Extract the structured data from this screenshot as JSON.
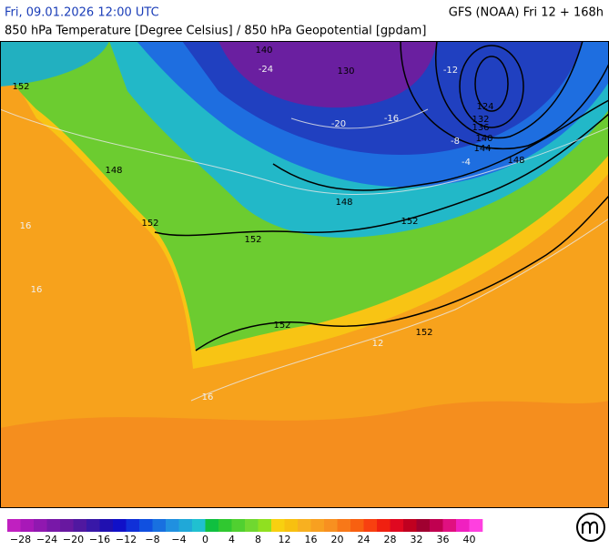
{
  "header": {
    "datetime": "Fri, 09.01.2026 12:00 UTC",
    "model": "GFS (NOAA) Fri 12 + 168h",
    "title": "850 hPa Temperature [Degree Celsius] / 850 hPa Geopotential [gpdam]"
  },
  "geopotential_labels": [
    124,
    132,
    136,
    140,
    144,
    148,
    148,
    152,
    152,
    152,
    152,
    152,
    148,
    140,
    130,
    152
  ],
  "temperature_labels": [
    -20,
    -16,
    -12,
    -8,
    -4,
    12,
    16,
    16,
    16,
    -24
  ],
  "colorbar": {
    "range": [
      -30,
      42
    ],
    "colors": [
      "#c020c0",
      "#a818b8",
      "#9018b0",
      "#7818a8",
      "#6818a0",
      "#5018a0",
      "#3818a8",
      "#2010b0",
      "#1010c8",
      "#1030d8",
      "#1050e0",
      "#1870e0",
      "#2090e0",
      "#20a8d8",
      "#20c0d0",
      "#10c040",
      "#30c830",
      "#50d030",
      "#70d830",
      "#90e020",
      "#f8d010",
      "#f8c010",
      "#f8b020",
      "#f8a020",
      "#f89020",
      "#f87818",
      "#f86010",
      "#f84010",
      "#f02010",
      "#e00820",
      "#c00020",
      "#a00030",
      "#c00050",
      "#e01080",
      "#f020c0",
      "#ff40e0"
    ],
    "ticks": [
      {
        "value": -28,
        "label": "−28"
      },
      {
        "value": -24,
        "label": "−24"
      },
      {
        "value": -20,
        "label": "−20"
      },
      {
        "value": -16,
        "label": "−16"
      },
      {
        "value": -12,
        "label": "−12"
      },
      {
        "value": -8,
        "label": "−8"
      },
      {
        "value": -4,
        "label": "−4"
      },
      0,
      4,
      8,
      12,
      16,
      20,
      24,
      28,
      32,
      36,
      40
    ]
  }
}
